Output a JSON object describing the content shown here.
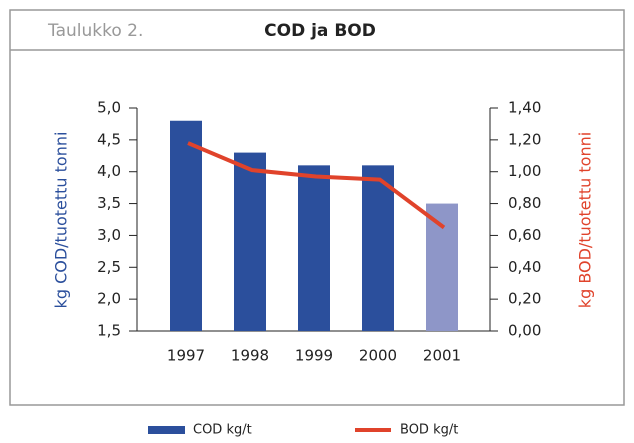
{
  "chart_data": {
    "type": "bar-line",
    "label": "Taulukko 2.",
    "title": "COD ja BOD",
    "ylabel": "kg COD/tuotettu tonni",
    "y2label": "kg BOD/tuotettu tonni",
    "categories": [
      "1997",
      "1998",
      "1999",
      "2000",
      "2001"
    ],
    "series": [
      {
        "name": "COD kg/t",
        "type": "bar",
        "color": "#2b4f9c",
        "colors": [
          "#2b4f9c",
          "#2b4f9c",
          "#2b4f9c",
          "#2b4f9c",
          "#8e96c8"
        ],
        "values": [
          4.8,
          4.3,
          4.1,
          4.1,
          3.5
        ]
      },
      {
        "name": "BOD kg/t",
        "type": "line",
        "axis": "y2",
        "color": "#e0432b",
        "values": [
          1.18,
          1.01,
          0.97,
          0.95,
          0.65
        ]
      }
    ],
    "ylim": [
      1.5,
      5.0
    ],
    "yticks": [
      {
        "value": 1.5,
        "label": "1,5"
      },
      {
        "value": 2.0,
        "label": "2,0"
      },
      {
        "value": 2.5,
        "label": "2,5"
      },
      {
        "value": 3.0,
        "label": "3,0"
      },
      {
        "value": 3.5,
        "label": "3,5"
      },
      {
        "value": 4.0,
        "label": "4,0"
      },
      {
        "value": 4.5,
        "label": "4,5"
      },
      {
        "value": 5.0,
        "label": "5,0"
      }
    ],
    "y2lim": [
      0,
      1.4
    ],
    "y2ticks": [
      {
        "value": 0,
        "label": "0,00"
      },
      {
        "value": 0.2,
        "label": "0,20"
      },
      {
        "value": 0.4,
        "label": "0,40"
      },
      {
        "value": 0.6,
        "label": "0,60"
      },
      {
        "value": 0.8,
        "label": "0,80"
      },
      {
        "value": 1.0,
        "label": "1,00"
      },
      {
        "value": 1.2,
        "label": "1,20"
      },
      {
        "value": 1.4,
        "label": "1,40"
      }
    ]
  }
}
